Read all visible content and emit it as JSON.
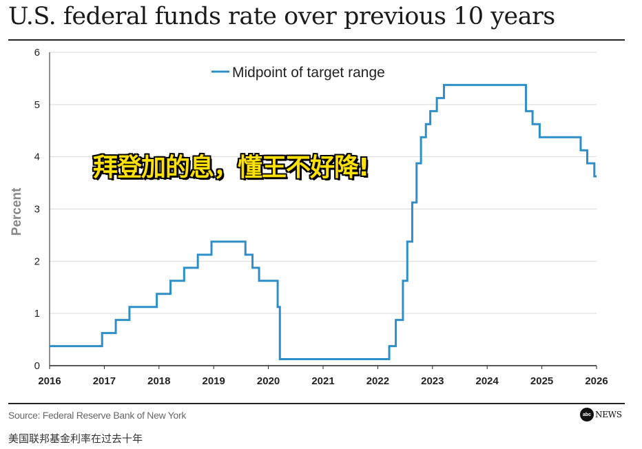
{
  "header": {
    "title": "U.S. federal funds rate over previous 10 years"
  },
  "overlay_caption": "拜登加的息，懂王不好降!",
  "footer": {
    "source": "Source: Federal Reserve Bank of New York",
    "logo_badge": "abc",
    "logo_text": "NEWS"
  },
  "page_caption": "美国联邦基金利率在过去十年",
  "colors": {
    "line": "#2e8fc8",
    "grid": "#d9d9d9",
    "axis": "#222222",
    "overlay_text": "#ffe100"
  },
  "chart_data": {
    "type": "line",
    "step": true,
    "title": "U.S. federal funds rate over previous 10 years",
    "xlabel": "",
    "ylabel": "Percent",
    "xlim": [
      2016,
      2026
    ],
    "ylim": [
      0,
      6
    ],
    "x_ticks": [
      2016,
      2017,
      2018,
      2019,
      2020,
      2021,
      2022,
      2023,
      2024,
      2025,
      2026
    ],
    "y_ticks": [
      0,
      1,
      2,
      3,
      4,
      5,
      6
    ],
    "grid": true,
    "legend": "top-center",
    "series": [
      {
        "name": "Midpoint of target range",
        "x": [
          2016,
          2016.96,
          2017.21,
          2017.46,
          2017.96,
          2018.21,
          2018.46,
          2018.71,
          2018.96,
          2019.58,
          2019.71,
          2019.83,
          2020.17,
          2020.21,
          2022.21,
          2022.33,
          2022.46,
          2022.54,
          2022.63,
          2022.71,
          2022.79,
          2022.88,
          2022.96,
          2023.08,
          2023.21,
          2023.33,
          2023.58,
          2024.71,
          2024.83,
          2024.96,
          2025.71,
          2025.83,
          2025.96,
          2026.0
        ],
        "y": [
          0.375,
          0.625,
          0.875,
          1.125,
          1.375,
          1.625,
          1.875,
          2.125,
          2.375,
          2.125,
          1.875,
          1.625,
          1.125,
          0.125,
          0.375,
          0.875,
          1.625,
          2.375,
          3.125,
          3.875,
          4.375,
          4.625,
          4.875,
          5.125,
          5.375,
          5.375,
          5.375,
          4.875,
          4.625,
          4.375,
          4.125,
          3.875,
          3.625,
          3.625
        ]
      }
    ]
  }
}
